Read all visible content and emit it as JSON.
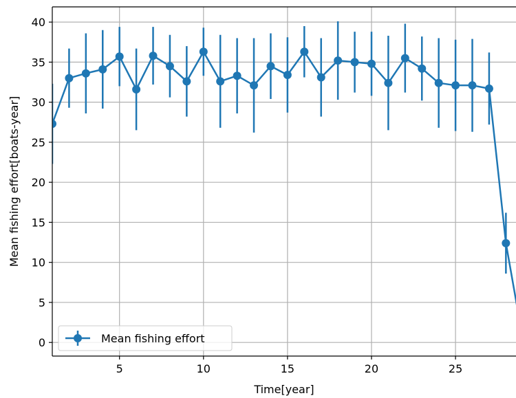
{
  "chart_data": {
    "type": "line",
    "title": "",
    "xlabel": "Time[year]",
    "ylabel": "Mean fishing effort[boats-year]",
    "xlim": [
      1,
      28.6
    ],
    "ylim": [
      -1.7,
      41.9
    ],
    "x_ticks": [
      5,
      10,
      15,
      20,
      25
    ],
    "y_ticks": [
      0,
      5,
      10,
      15,
      20,
      25,
      30,
      35,
      40
    ],
    "grid": true,
    "legend_position": "lower left",
    "series": [
      {
        "name": "Mean fishing effort",
        "color": "#1f77b4",
        "marker": "circle",
        "error_bars": true,
        "x": [
          1,
          2,
          3,
          4,
          5,
          6,
          7,
          8,
          9,
          10,
          11,
          12,
          13,
          14,
          15,
          16,
          17,
          18,
          19,
          20,
          21,
          22,
          23,
          24,
          25,
          26,
          27,
          28,
          29
        ],
        "y": [
          27.3,
          33.0,
          33.6,
          34.1,
          35.7,
          31.6,
          35.8,
          34.5,
          32.6,
          36.3,
          32.6,
          33.3,
          32.1,
          34.5,
          33.4,
          36.3,
          33.1,
          35.2,
          35.0,
          34.8,
          32.4,
          35.5,
          34.2,
          32.4,
          32.1,
          32.1,
          31.7,
          12.4,
          0.5
        ],
        "yerr": [
          5.0,
          3.7,
          5.0,
          4.9,
          3.7,
          5.1,
          3.6,
          3.9,
          4.4,
          3.0,
          5.8,
          4.7,
          5.9,
          4.1,
          4.7,
          3.2,
          4.9,
          4.9,
          3.8,
          4.0,
          5.9,
          4.3,
          4.0,
          5.6,
          5.7,
          5.8,
          4.5,
          3.8,
          4.0
        ]
      }
    ]
  }
}
